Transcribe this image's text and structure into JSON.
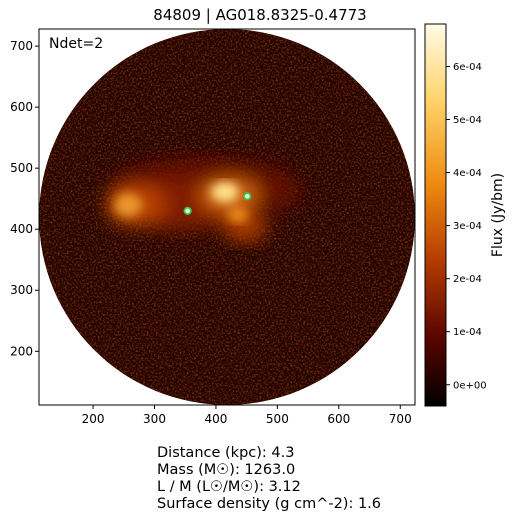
{
  "title": "84809 | AG018.8325-0.4773",
  "ndet_label": "Ndet=2",
  "x_axis": {
    "ticks": [
      "200",
      "300",
      "400",
      "500",
      "600",
      "700"
    ],
    "range": [
      112,
      724
    ]
  },
  "y_axis": {
    "ticks": [
      "200",
      "300",
      "400",
      "500",
      "600",
      "700"
    ],
    "range": [
      112,
      728
    ]
  },
  "colorbar": {
    "label": "Flux (Jy/bm)",
    "ticks": [
      "0e+00",
      "1e-04",
      "2e-04",
      "3e-04",
      "4e-04",
      "5e-04",
      "6e-04"
    ],
    "range": [
      -4e-05,
      0.00068
    ],
    "colormap": "afmhot",
    "colors": [
      "#000000",
      "#5a0500",
      "#b43c00",
      "#ee8a10",
      "#ffd36a",
      "#fffbe6"
    ]
  },
  "detections": {
    "count": 2,
    "points": [
      {
        "x": 354,
        "y": 430
      },
      {
        "x": 451,
        "y": 454
      }
    ],
    "marker_color": "#2ecc40"
  },
  "emission": {
    "center": [
      420,
      450
    ],
    "description_shape": "elongated-east-west"
  },
  "info": {
    "distance": "Distance (kpc): 4.3",
    "mass": "Mass (M☉): 1263.0",
    "lm": "L / M (L☉/M☉): 3.12",
    "surface_density": "Surface density (g cm^-2): 1.6"
  }
}
